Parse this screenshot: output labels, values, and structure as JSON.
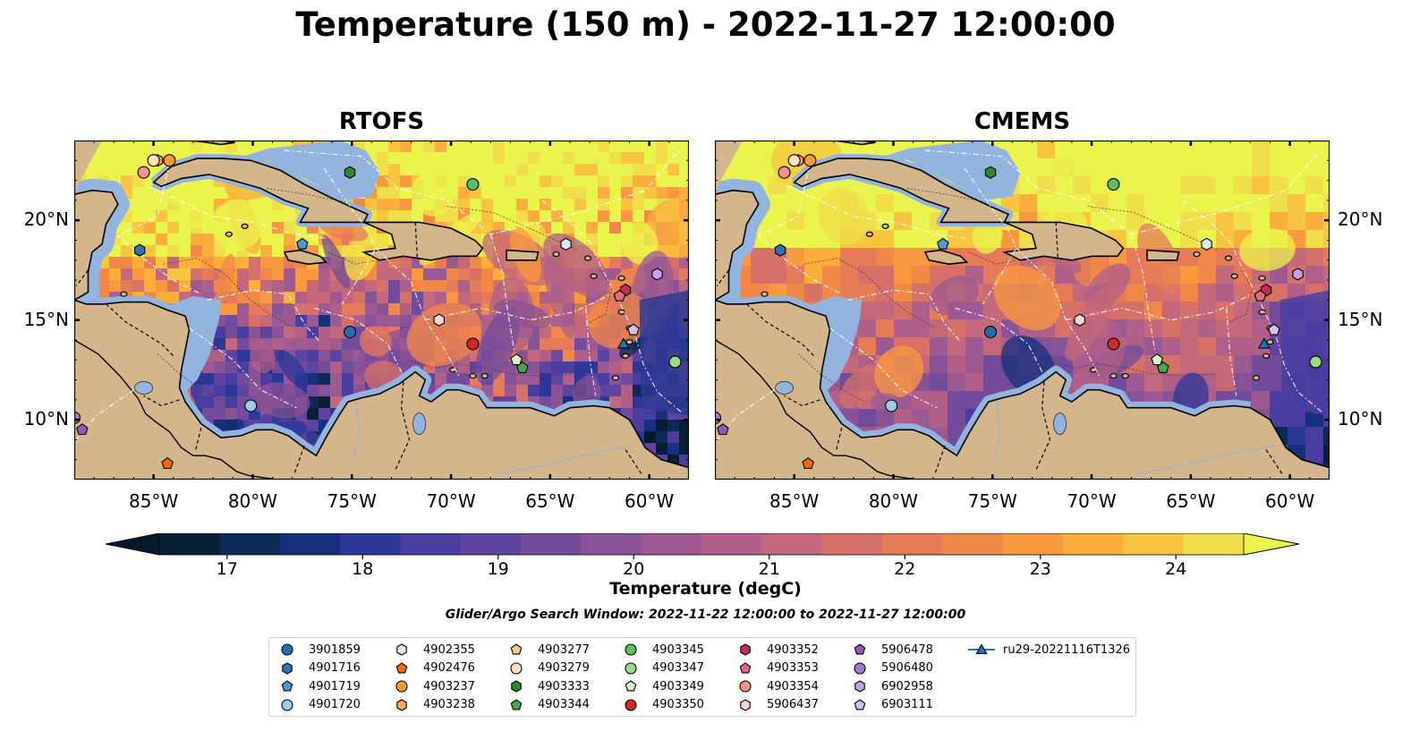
{
  "title": "Temperature (150 m) - 2022-11-27 12:00:00",
  "panels": [
    {
      "title": "RTOFS",
      "model": "RTOFS"
    },
    {
      "title": "CMEMS",
      "model": "CMEMS"
    }
  ],
  "map": {
    "lon_range": [
      -89,
      -58
    ],
    "lat_range": [
      7,
      24
    ],
    "lon_ticks": [
      -85,
      -80,
      -75,
      -70,
      -65,
      -60
    ],
    "lon_tick_labels": [
      "85°W",
      "80°W",
      "75°W",
      "70°W",
      "65°W",
      "60°W"
    ],
    "lat_ticks": [
      10,
      15,
      20
    ],
    "lat_tick_labels": [
      "10°N",
      "15°N",
      "20°N"
    ],
    "colors": {
      "land": "#d3b68c",
      "shelf": "#92b4de",
      "coast": "#000000",
      "eez": "#ffffff"
    }
  },
  "colorbar": {
    "label": "Temperature (degC)",
    "vmin": 16.5,
    "vmax": 24.5,
    "ticks": [
      17,
      18,
      19,
      20,
      21,
      22,
      23,
      24
    ],
    "tick_labels": [
      "17",
      "18",
      "19",
      "20",
      "21",
      "22",
      "23",
      "24"
    ],
    "colors": [
      "#061f34",
      "#0c2a56",
      "#16307b",
      "#2c3797",
      "#493da0",
      "#5f449f",
      "#734b9b",
      "#885296",
      "#9c5992",
      "#b06088",
      "#c4687b",
      "#d6716a",
      "#e67b5a",
      "#f28848",
      "#f9993f",
      "#fbae3c",
      "#f7c540",
      "#f0de4a"
    ],
    "under_color": "#041a2c",
    "over_color": "#ebf44c"
  },
  "search_window": "Glider/Argo Search Window: 2022-11-22 12:00:00 to 2022-11-27 12:00:00",
  "floats": [
    {
      "id": "3901859",
      "marker": "circle",
      "color": "#1f6fb2",
      "lon": -75.1,
      "lat": 14.4
    },
    {
      "id": "4901716",
      "marker": "hexagon",
      "color": "#2f73ad",
      "lon": -85.7,
      "lat": 18.5
    },
    {
      "id": "4901719",
      "marker": "pentagon",
      "color": "#4a9ad8",
      "lon": -77.5,
      "lat": 18.8
    },
    {
      "id": "4901720",
      "marker": "circle",
      "color": "#9ecae8",
      "lon": -80.1,
      "lat": 10.7
    },
    {
      "id": "4902355",
      "marker": "hexagon",
      "color": "#ddeaf7",
      "lon": -64.2,
      "lat": 18.8
    },
    {
      "id": "4902476",
      "marker": "pentagon",
      "color": "#f26b0f",
      "lon": -84.3,
      "lat": 7.8
    },
    {
      "id": "4903237",
      "marker": "circle",
      "color": "#f59b3a",
      "lon": -84.2,
      "lat": 23.0
    },
    {
      "id": "4903238",
      "marker": "hexagon",
      "color": "#f7a85c",
      "lon": -84.8,
      "lat": 23.0
    },
    {
      "id": "4903277",
      "marker": "pentagon",
      "color": "#f8c890",
      "lon": -85.0,
      "lat": 23.0
    },
    {
      "id": "4903279",
      "marker": "circle",
      "color": "#fde0c2",
      "lon": -85.0,
      "lat": 23.0
    },
    {
      "id": "4903333",
      "marker": "hexagon",
      "color": "#2a8a2a",
      "lon": -75.1,
      "lat": 22.4
    },
    {
      "id": "4903344",
      "marker": "pentagon",
      "color": "#44aa44",
      "lon": -66.4,
      "lat": 12.6
    },
    {
      "id": "4903345",
      "marker": "circle",
      "color": "#5cbf5c",
      "lon": -68.9,
      "lat": 21.8
    },
    {
      "id": "4903347",
      "marker": "circle",
      "color": "#99dd88",
      "lon": -58.7,
      "lat": 12.9
    },
    {
      "id": "4903349",
      "marker": "pentagon",
      "color": "#d8f7c8",
      "lon": -66.7,
      "lat": 13.0
    },
    {
      "id": "4903350",
      "marker": "circle",
      "color": "#d62728",
      "lon": -68.9,
      "lat": 13.8
    },
    {
      "id": "4903352",
      "marker": "hexagon",
      "color": "#c0304f",
      "lon": -61.2,
      "lat": 16.5
    },
    {
      "id": "4903353",
      "marker": "pentagon",
      "color": "#e36b7b",
      "lon": -61.5,
      "lat": 16.2
    },
    {
      "id": "4903354",
      "marker": "circle",
      "color": "#f4958a",
      "lon": -85.5,
      "lat": 22.4
    },
    {
      "id": "5906437",
      "marker": "hexagon",
      "color": "#fad4d0",
      "lon": -70.6,
      "lat": 15.0
    },
    {
      "id": "5906478",
      "marker": "pentagon",
      "color": "#8e5ab8",
      "lon": -88.6,
      "lat": 9.5
    },
    {
      "id": "5906480",
      "marker": "circle",
      "color": "#a07ad0",
      "lon": -89.0,
      "lat": 10.1
    },
    {
      "id": "6902958",
      "marker": "hexagon",
      "color": "#c8a0e8",
      "lon": -59.6,
      "lat": 17.3
    },
    {
      "id": "6903111",
      "marker": "pentagon",
      "color": "#d6c0f0",
      "lon": -60.8,
      "lat": 14.5
    },
    {
      "id": "ru29-20221116T1326",
      "marker": "triangle",
      "color": "#1f77b4",
      "lon": -61.3,
      "lat": 13.8
    }
  ]
}
